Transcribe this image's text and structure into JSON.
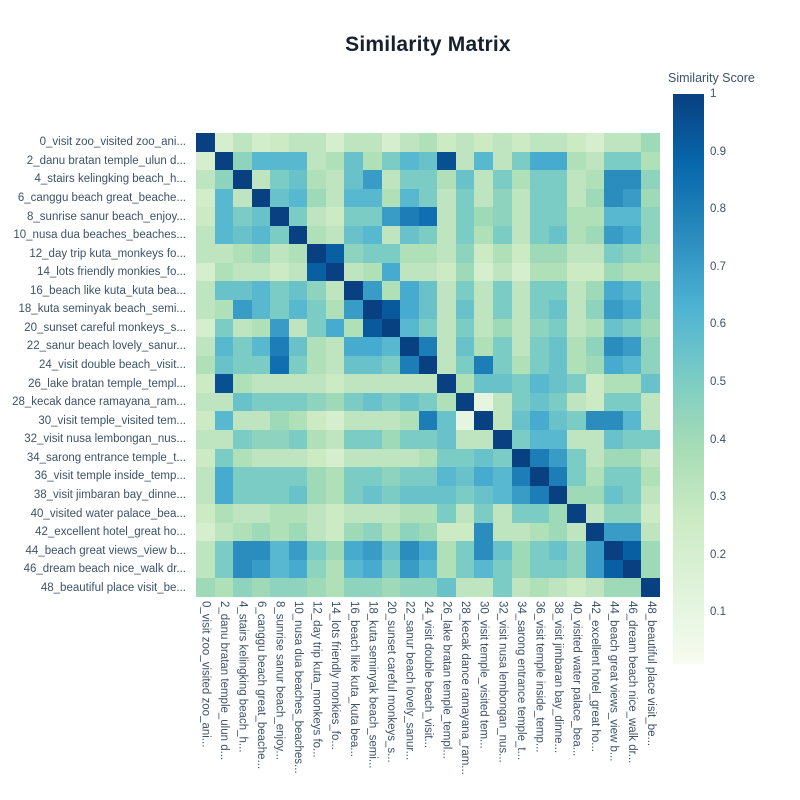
{
  "title": "Similarity Matrix",
  "chart_data": {
    "type": "heatmap",
    "title": "Similarity Matrix",
    "legend_position": "right-colorbar",
    "grid": false,
    "labels": [
      "0_visit zoo_visited zoo_ani...",
      "2_danu bratan temple_ulun d...",
      "4_stairs kelingking beach_h...",
      "6_canggu beach great_beache...",
      "8_sunrise sanur beach_enjoy...",
      "10_nusa dua beaches_beaches...",
      "12_day trip kuta_monkeys fo...",
      "14_lots friendly monkies_fo...",
      "16_beach like kuta_kuta bea...",
      "18_kuta seminyak beach_semi...",
      "20_sunset careful monkeys_s...",
      "22_sanur beach lovely_sanur...",
      "24_visit double beach_visit...",
      "26_lake bratan temple_templ...",
      "28_kecak dance ramayana_ram...",
      "30_visit temple_visited tem...",
      "32_visit nusa lembongan_nus...",
      "34_sarong entrance temple_t...",
      "36_visit temple inside_temp...",
      "38_visit jimbaran bay_dinne...",
      "40_visited water palace_bea...",
      "42_excellent hotel_great ho...",
      "44_beach great views_view b...",
      "46_dream beach nice_walk dr...",
      "48_beautiful place visit_be..."
    ],
    "matrix": [
      [
        1.0,
        0.2,
        0.3,
        0.22,
        0.25,
        0.3,
        0.3,
        0.2,
        0.3,
        0.3,
        0.2,
        0.3,
        0.35,
        0.25,
        0.3,
        0.25,
        0.3,
        0.25,
        0.3,
        0.3,
        0.25,
        0.2,
        0.3,
        0.3,
        0.4
      ],
      [
        0.2,
        1.0,
        0.45,
        0.6,
        0.6,
        0.6,
        0.3,
        0.35,
        0.55,
        0.35,
        0.5,
        0.6,
        0.55,
        0.95,
        0.3,
        0.6,
        0.3,
        0.5,
        0.65,
        0.65,
        0.35,
        0.3,
        0.5,
        0.5,
        0.35
      ],
      [
        0.3,
        0.45,
        1.0,
        0.3,
        0.5,
        0.55,
        0.35,
        0.3,
        0.55,
        0.7,
        0.3,
        0.5,
        0.5,
        0.35,
        0.55,
        0.3,
        0.5,
        0.35,
        0.5,
        0.5,
        0.3,
        0.35,
        0.75,
        0.75,
        0.45
      ],
      [
        0.22,
        0.6,
        0.3,
        1.0,
        0.55,
        0.6,
        0.4,
        0.3,
        0.6,
        0.6,
        0.35,
        0.6,
        0.5,
        0.3,
        0.5,
        0.3,
        0.45,
        0.3,
        0.5,
        0.5,
        0.3,
        0.4,
        0.75,
        0.7,
        0.4
      ],
      [
        0.25,
        0.6,
        0.5,
        0.55,
        1.0,
        0.5,
        0.3,
        0.25,
        0.5,
        0.5,
        0.7,
        0.8,
        0.85,
        0.3,
        0.5,
        0.4,
        0.45,
        0.3,
        0.5,
        0.5,
        0.35,
        0.35,
        0.6,
        0.6,
        0.45
      ],
      [
        0.3,
        0.6,
        0.55,
        0.6,
        0.5,
        1.0,
        0.35,
        0.3,
        0.55,
        0.6,
        0.3,
        0.55,
        0.5,
        0.3,
        0.5,
        0.35,
        0.5,
        0.3,
        0.5,
        0.55,
        0.35,
        0.4,
        0.7,
        0.65,
        0.45
      ],
      [
        0.3,
        0.3,
        0.35,
        0.4,
        0.3,
        0.35,
        1.0,
        0.9,
        0.45,
        0.5,
        0.5,
        0.35,
        0.35,
        0.3,
        0.45,
        0.25,
        0.35,
        0.25,
        0.4,
        0.4,
        0.3,
        0.3,
        0.5,
        0.45,
        0.4
      ],
      [
        0.2,
        0.35,
        0.3,
        0.3,
        0.25,
        0.3,
        0.9,
        1.0,
        0.3,
        0.35,
        0.65,
        0.3,
        0.3,
        0.25,
        0.4,
        0.2,
        0.3,
        0.2,
        0.35,
        0.35,
        0.25,
        0.25,
        0.4,
        0.35,
        0.35
      ],
      [
        0.3,
        0.55,
        0.55,
        0.6,
        0.5,
        0.55,
        0.45,
        0.3,
        1.0,
        0.7,
        0.35,
        0.65,
        0.55,
        0.3,
        0.5,
        0.3,
        0.5,
        0.3,
        0.5,
        0.5,
        0.3,
        0.4,
        0.65,
        0.6,
        0.45
      ],
      [
        0.3,
        0.35,
        0.7,
        0.6,
        0.5,
        0.6,
        0.5,
        0.35,
        0.7,
        1.0,
        0.92,
        0.65,
        0.55,
        0.3,
        0.55,
        0.3,
        0.5,
        0.3,
        0.5,
        0.55,
        0.3,
        0.45,
        0.7,
        0.65,
        0.45
      ],
      [
        0.2,
        0.5,
        0.3,
        0.35,
        0.7,
        0.3,
        0.5,
        0.65,
        0.35,
        0.92,
        1.0,
        0.6,
        0.5,
        0.3,
        0.5,
        0.3,
        0.4,
        0.3,
        0.45,
        0.5,
        0.3,
        0.35,
        0.55,
        0.5,
        0.4
      ],
      [
        0.3,
        0.6,
        0.5,
        0.6,
        0.8,
        0.55,
        0.35,
        0.3,
        0.65,
        0.65,
        0.6,
        1.0,
        0.8,
        0.3,
        0.55,
        0.35,
        0.5,
        0.3,
        0.5,
        0.55,
        0.35,
        0.45,
        0.75,
        0.7,
        0.45
      ],
      [
        0.35,
        0.55,
        0.5,
        0.5,
        0.85,
        0.5,
        0.35,
        0.3,
        0.55,
        0.55,
        0.5,
        0.8,
        1.0,
        0.3,
        0.5,
        0.8,
        0.5,
        0.35,
        0.5,
        0.55,
        0.35,
        0.4,
        0.65,
        0.6,
        0.45
      ],
      [
        0.25,
        0.95,
        0.35,
        0.3,
        0.3,
        0.3,
        0.3,
        0.25,
        0.3,
        0.3,
        0.3,
        0.3,
        0.3,
        1.0,
        0.35,
        0.55,
        0.55,
        0.5,
        0.6,
        0.55,
        0.5,
        0.25,
        0.35,
        0.35,
        0.55
      ],
      [
        0.3,
        0.3,
        0.55,
        0.5,
        0.5,
        0.5,
        0.45,
        0.4,
        0.5,
        0.55,
        0.5,
        0.55,
        0.5,
        0.35,
        1.0,
        0.1,
        0.3,
        0.5,
        0.55,
        0.5,
        0.3,
        0.25,
        0.5,
        0.5,
        0.3
      ],
      [
        0.25,
        0.6,
        0.3,
        0.3,
        0.4,
        0.35,
        0.25,
        0.2,
        0.3,
        0.3,
        0.3,
        0.35,
        0.8,
        0.55,
        0.1,
        1.0,
        0.3,
        0.55,
        0.65,
        0.55,
        0.5,
        0.75,
        0.75,
        0.6,
        0.3
      ],
      [
        0.3,
        0.3,
        0.5,
        0.45,
        0.45,
        0.5,
        0.35,
        0.3,
        0.5,
        0.5,
        0.4,
        0.5,
        0.5,
        0.55,
        0.3,
        0.3,
        1.0,
        0.5,
        0.6,
        0.6,
        0.3,
        0.3,
        0.55,
        0.5,
        0.5
      ],
      [
        0.25,
        0.5,
        0.35,
        0.3,
        0.3,
        0.3,
        0.25,
        0.2,
        0.3,
        0.3,
        0.3,
        0.3,
        0.35,
        0.5,
        0.5,
        0.55,
        0.5,
        1.0,
        0.8,
        0.7,
        0.5,
        0.3,
        0.4,
        0.4,
        0.3
      ],
      [
        0.3,
        0.65,
        0.5,
        0.5,
        0.5,
        0.5,
        0.4,
        0.35,
        0.5,
        0.5,
        0.45,
        0.5,
        0.5,
        0.6,
        0.55,
        0.65,
        0.6,
        0.8,
        1.0,
        0.8,
        0.5,
        0.35,
        0.5,
        0.5,
        0.35
      ],
      [
        0.3,
        0.65,
        0.5,
        0.5,
        0.5,
        0.55,
        0.4,
        0.35,
        0.5,
        0.55,
        0.5,
        0.55,
        0.55,
        0.55,
        0.5,
        0.55,
        0.6,
        0.7,
        0.8,
        1.0,
        0.4,
        0.4,
        0.55,
        0.5,
        0.3
      ],
      [
        0.25,
        0.35,
        0.3,
        0.3,
        0.35,
        0.35,
        0.3,
        0.25,
        0.3,
        0.3,
        0.3,
        0.35,
        0.35,
        0.5,
        0.3,
        0.5,
        0.3,
        0.5,
        0.5,
        0.4,
        1.0,
        0.3,
        0.45,
        0.45,
        0.25
      ],
      [
        0.2,
        0.3,
        0.35,
        0.4,
        0.35,
        0.4,
        0.3,
        0.25,
        0.4,
        0.45,
        0.35,
        0.45,
        0.4,
        0.25,
        0.25,
        0.75,
        0.3,
        0.3,
        0.35,
        0.4,
        0.3,
        1.0,
        0.7,
        0.7,
        0.3
      ],
      [
        0.3,
        0.5,
        0.75,
        0.75,
        0.6,
        0.7,
        0.5,
        0.4,
        0.65,
        0.7,
        0.55,
        0.75,
        0.65,
        0.35,
        0.5,
        0.75,
        0.55,
        0.4,
        0.5,
        0.55,
        0.45,
        0.7,
        1.0,
        0.9,
        0.4
      ],
      [
        0.3,
        0.5,
        0.75,
        0.7,
        0.6,
        0.65,
        0.45,
        0.35,
        0.6,
        0.65,
        0.5,
        0.7,
        0.6,
        0.35,
        0.5,
        0.6,
        0.5,
        0.4,
        0.5,
        0.5,
        0.45,
        0.7,
        0.9,
        1.0,
        0.4
      ],
      [
        0.4,
        0.35,
        0.45,
        0.4,
        0.45,
        0.45,
        0.4,
        0.35,
        0.45,
        0.45,
        0.4,
        0.45,
        0.45,
        0.55,
        0.3,
        0.3,
        0.5,
        0.3,
        0.35,
        0.3,
        0.25,
        0.3,
        0.4,
        0.4,
        1.0
      ]
    ],
    "colorbar": {
      "title": "Similarity Score",
      "ticks": [
        "1",
        "0.9",
        "0.8",
        "0.7",
        "0.6",
        "0.5",
        "0.4",
        "0.3",
        "0.2",
        "0.1"
      ],
      "tick_values": [
        1,
        0.9,
        0.8,
        0.7,
        0.6,
        0.5,
        0.4,
        0.3,
        0.2,
        0.1
      ],
      "value_min": 0.01,
      "value_max": 1.0
    },
    "colorscale": {
      "name": "GnBu (low=light green, high=dark blue)",
      "stops": [
        "#f7fcf0",
        "#e0f3db",
        "#ccebc5",
        "#a8ddb5",
        "#7bccc4",
        "#4eb3d3",
        "#2b8cbe",
        "#0868ac",
        "#084081"
      ]
    },
    "text_color": "#3d5368"
  }
}
